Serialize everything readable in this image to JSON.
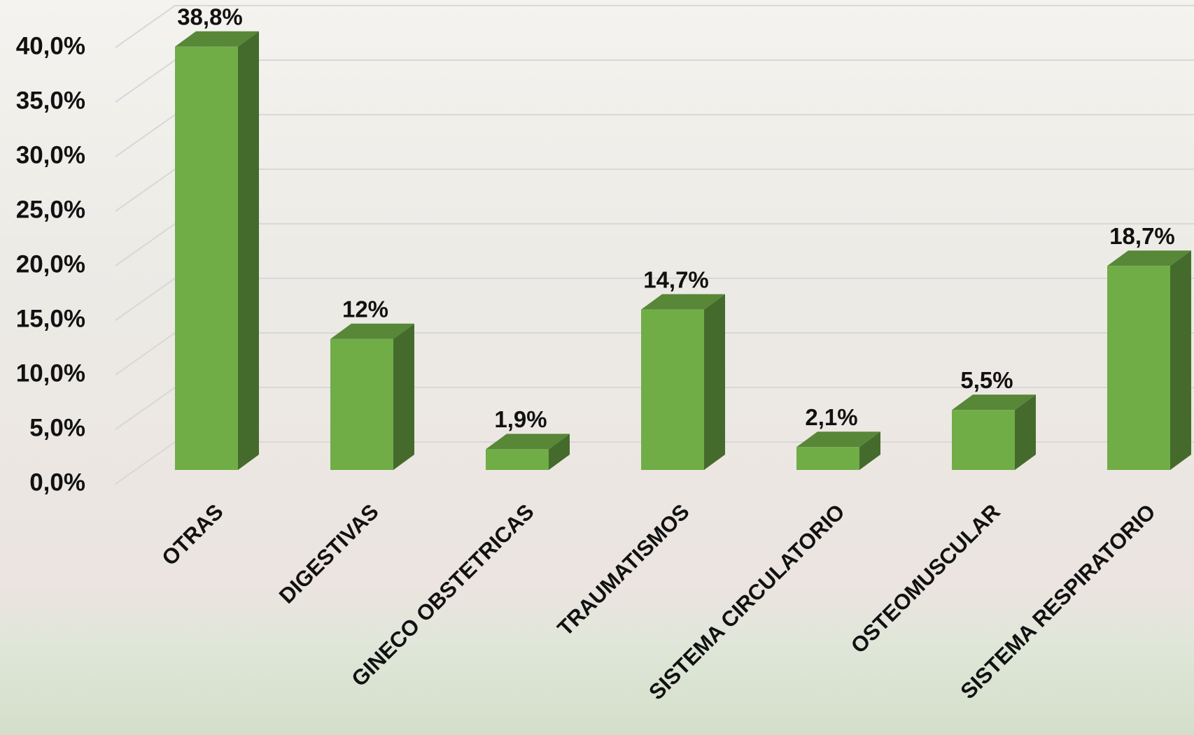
{
  "chart_data": {
    "type": "bar3d",
    "categories": [
      "OTRAS",
      "DIGESTIVAS",
      "GINECO OBSTETRICAS",
      "TRAUMATISMOS",
      "SISTEMA CIRCULATORIO",
      "OSTEOMUSCULAR",
      "SISTEMA RESPIRATORIO"
    ],
    "values": [
      38.8,
      12,
      1.9,
      14.7,
      2.1,
      5.5,
      18.7
    ],
    "value_labels": [
      "38,8%",
      "12%",
      "1,9%",
      "14,7%",
      "2,1%",
      "5,5%",
      "18,7%"
    ],
    "color": "#70ad47",
    "ylim": [
      0,
      40
    ],
    "yticks": [
      {
        "value": 0,
        "label": "0,0%"
      },
      {
        "value": 5,
        "label": "5,0%"
      },
      {
        "value": 10,
        "label": "10,0%"
      },
      {
        "value": 15,
        "label": "15,0%"
      },
      {
        "value": 20,
        "label": "20,0%"
      },
      {
        "value": 25,
        "label": "25,0%"
      },
      {
        "value": 30,
        "label": "30,0%"
      },
      {
        "value": 35,
        "label": "35,0%"
      },
      {
        "value": 40,
        "label": "40,0%"
      }
    ],
    "grid": true
  }
}
